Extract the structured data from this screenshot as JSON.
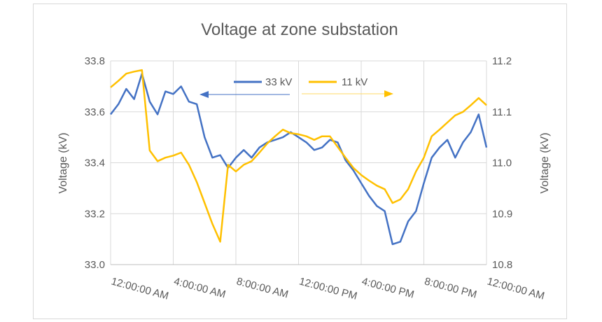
{
  "chart_data": {
    "type": "line",
    "title": "Voltage at zone substation",
    "ylabel": "Voltage (kV)",
    "y2label": "Voltage (kV)",
    "xlabel": "",
    "x_unit": "hours since 12:00:00 AM",
    "xlim": [
      0,
      24
    ],
    "ylim": [
      33.0,
      33.8
    ],
    "y2lim": [
      10.8,
      11.2
    ],
    "y_ticks": [
      "33.0",
      "33.2",
      "33.4",
      "33.6",
      "33.8"
    ],
    "y2_ticks": [
      "10.8",
      "10.9",
      "11.0",
      "11.1",
      "11.2"
    ],
    "x_ticks": [
      "12:00:00 AM",
      "4:00:00 AM",
      "8:00:00 AM",
      "12:00:00 PM",
      "4:00:00 PM",
      "8:00:00 PM",
      "12:00:00 AM"
    ],
    "grid": true,
    "legend": "top-center",
    "x": [
      0,
      0.5,
      1,
      1.5,
      2,
      2.5,
      3,
      3.5,
      4,
      4.5,
      5,
      5.5,
      6,
      6.5,
      7,
      7.5,
      8,
      8.5,
      9,
      9.5,
      10,
      10.5,
      11,
      11.5,
      12,
      12.5,
      13,
      13.5,
      14,
      14.5,
      15,
      15.5,
      16,
      16.5,
      17,
      17.5,
      18,
      18.5,
      19,
      19.5,
      20,
      20.5,
      21,
      21.5,
      22,
      22.5,
      23,
      23.5,
      24
    ],
    "series": [
      {
        "name": "33 kV",
        "axis": "left",
        "color": "#4472C4",
        "arrow": "left",
        "values": [
          33.59,
          33.63,
          33.69,
          33.65,
          33.75,
          33.64,
          33.59,
          33.68,
          33.67,
          33.7,
          33.64,
          33.63,
          33.5,
          33.42,
          33.43,
          33.38,
          33.42,
          33.45,
          33.42,
          33.46,
          33.48,
          33.49,
          33.5,
          33.52,
          33.5,
          33.48,
          33.45,
          33.46,
          33.49,
          33.48,
          33.41,
          33.37,
          33.32,
          33.27,
          33.23,
          33.21,
          33.08,
          33.09,
          33.17,
          33.21,
          33.32,
          33.42,
          33.46,
          33.49,
          33.42,
          33.48,
          33.52,
          33.59,
          33.46
        ]
      },
      {
        "name": "11 kV",
        "axis": "right",
        "color": "#FFC000",
        "arrow": "right",
        "values": [
          11.148,
          11.161,
          11.175,
          11.179,
          11.182,
          11.024,
          11.003,
          11.01,
          11.014,
          11.02,
          10.996,
          10.962,
          10.921,
          10.88,
          10.845,
          10.996,
          10.983,
          10.996,
          11.003,
          11.02,
          11.038,
          11.052,
          11.065,
          11.058,
          11.056,
          11.052,
          11.045,
          11.052,
          11.052,
          11.031,
          11.01,
          10.99,
          10.976,
          10.965,
          10.955,
          10.948,
          10.921,
          10.928,
          10.948,
          10.983,
          11.01,
          11.052,
          11.065,
          11.079,
          11.093,
          11.1,
          11.113,
          11.127,
          11.113
        ]
      }
    ]
  }
}
